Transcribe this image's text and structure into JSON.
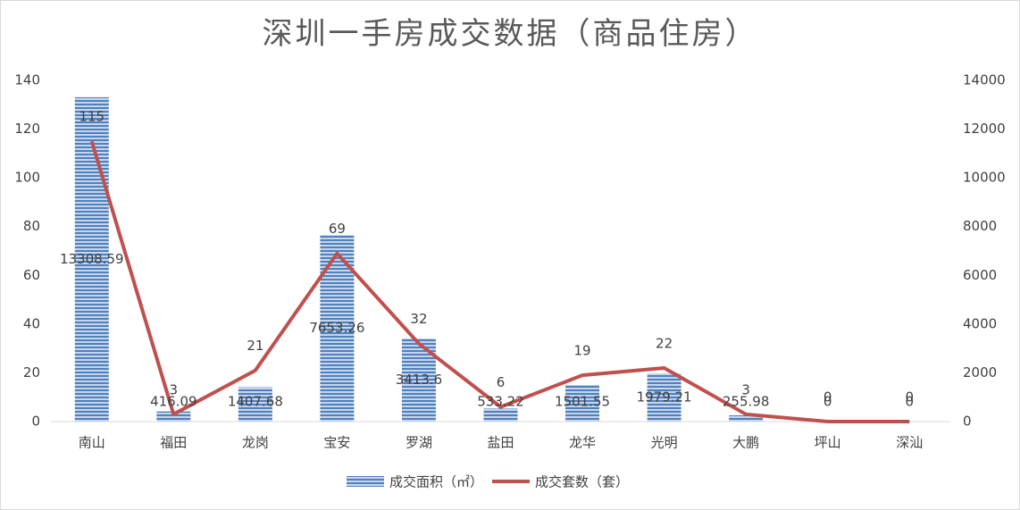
{
  "chart_data": {
    "type": "combo",
    "title": "深圳一手房成交数据（商品住房）",
    "categories": [
      "南山",
      "福田",
      "龙岗",
      "宝安",
      "罗湖",
      "盐田",
      "龙华",
      "光明",
      "大鹏",
      "坪山",
      "深汕"
    ],
    "series": [
      {
        "name": "成交面积（㎡）",
        "type": "bar",
        "axis": "y2",
        "color": "#4f81bd",
        "values": [
          13308.59,
          416.09,
          1407.68,
          7653.26,
          3413.6,
          533.22,
          1501.55,
          1979.21,
          255.98,
          0,
          0
        ]
      },
      {
        "name": "成交套数（套）",
        "type": "line",
        "axis": "y",
        "color": "#c0504d",
        "values": [
          115,
          3,
          21,
          69,
          32,
          6,
          19,
          22,
          3,
          0,
          0
        ]
      }
    ],
    "ylim": [
      0,
      140
    ],
    "yticks": [
      0,
      20,
      40,
      60,
      80,
      100,
      120,
      140
    ],
    "y2lim": [
      0,
      14000
    ],
    "y2ticks": [
      0,
      2000,
      4000,
      6000,
      8000,
      10000,
      12000,
      14000
    ],
    "grid": false,
    "legend": "bottom"
  }
}
